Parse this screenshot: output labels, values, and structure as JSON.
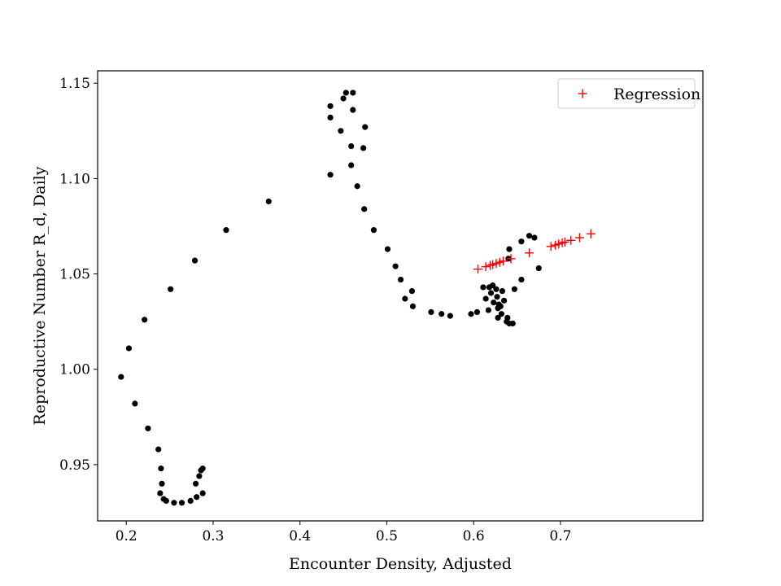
{
  "chart_data": {
    "type": "scatter",
    "title": "",
    "xlabel": "Encounter Density, Adjusted",
    "ylabel": "Reproductive Number R_d, Daily",
    "xlim": [
      0.167,
      0.864
    ],
    "ylim": [
      0.9205,
      1.1565
    ],
    "x_ticks": [
      "0.2",
      "0.3",
      "0.4",
      "0.5",
      "0.6",
      "0.7"
    ],
    "y_ticks": [
      "0.95",
      "1.00",
      "1.05",
      "1.10",
      "1.15"
    ],
    "grid": false,
    "legend_position": "top-right",
    "colors": {
      "observed": "#000000",
      "regression": "#ff0000"
    },
    "series": [
      {
        "marker": "dot",
        "points": [
          [
            0.194,
            0.996
          ],
          [
            0.203,
            1.011
          ],
          [
            0.21,
            0.982
          ],
          [
            0.221,
            1.026
          ],
          [
            0.225,
            0.969
          ],
          [
            0.237,
            0.958
          ],
          [
            0.239,
            0.935
          ],
          [
            0.24,
            0.948
          ],
          [
            0.241,
            0.94
          ],
          [
            0.243,
            0.932
          ],
          [
            0.246,
            0.931
          ],
          [
            0.251,
            1.042
          ],
          [
            0.255,
            0.93
          ],
          [
            0.264,
            0.93
          ],
          [
            0.274,
            0.931
          ],
          [
            0.279,
            1.057
          ],
          [
            0.281,
            0.933
          ],
          [
            0.28,
            0.94
          ],
          [
            0.284,
            0.944
          ],
          [
            0.286,
            0.947
          ],
          [
            0.288,
            0.948
          ],
          [
            0.288,
            0.935
          ],
          [
            0.315,
            1.073
          ],
          [
            0.364,
            1.088
          ],
          [
            0.435,
            1.138
          ],
          [
            0.435,
            1.132
          ],
          [
            0.435,
            1.102
          ],
          [
            0.447,
            1.125
          ],
          [
            0.45,
            1.142
          ],
          [
            0.453,
            1.145
          ],
          [
            0.459,
            1.117
          ],
          [
            0.459,
            1.107
          ],
          [
            0.461,
            1.145
          ],
          [
            0.461,
            1.136
          ],
          [
            0.466,
            1.096
          ],
          [
            0.473,
            1.116
          ],
          [
            0.474,
            1.084
          ],
          [
            0.475,
            1.127
          ],
          [
            0.485,
            1.073
          ],
          [
            0.501,
            1.063
          ],
          [
            0.51,
            1.054
          ],
          [
            0.516,
            1.047
          ],
          [
            0.521,
            1.037
          ],
          [
            0.529,
            1.041
          ],
          [
            0.53,
            1.033
          ],
          [
            0.551,
            1.03
          ],
          [
            0.563,
            1.029
          ],
          [
            0.573,
            1.028
          ],
          [
            0.597,
            1.029
          ],
          [
            0.604,
            1.03
          ],
          [
            0.611,
            1.043
          ],
          [
            0.614,
            1.037
          ],
          [
            0.617,
            1.031
          ],
          [
            0.618,
            1.043
          ],
          [
            0.62,
            1.04
          ],
          [
            0.622,
            1.044
          ],
          [
            0.623,
            1.035
          ],
          [
            0.626,
            1.042
          ],
          [
            0.627,
            1.038
          ],
          [
            0.628,
            1.032
          ],
          [
            0.628,
            1.027
          ],
          [
            0.629,
            1.034
          ],
          [
            0.631,
            1.033
          ],
          [
            0.632,
            1.029
          ],
          [
            0.633,
            1.041
          ],
          [
            0.635,
            1.036
          ],
          [
            0.638,
            1.025
          ],
          [
            0.639,
            1.027
          ],
          [
            0.641,
            1.024
          ],
          [
            0.64,
            1.058
          ],
          [
            0.641,
            1.063
          ],
          [
            0.645,
            1.024
          ],
          [
            0.647,
            1.042
          ],
          [
            0.655,
            1.047
          ],
          [
            0.655,
            1.067
          ],
          [
            0.664,
            1.07
          ],
          [
            0.67,
            1.069
          ],
          [
            0.675,
            1.053
          ]
        ]
      },
      {
        "name": "Regression",
        "marker": "plus",
        "points": [
          [
            0.605,
            1.0525
          ],
          [
            0.614,
            1.0538
          ],
          [
            0.619,
            1.0545
          ],
          [
            0.622,
            1.0549
          ],
          [
            0.626,
            1.0555
          ],
          [
            0.63,
            1.0561
          ],
          [
            0.634,
            1.0567
          ],
          [
            0.643,
            1.058
          ],
          [
            0.664,
            1.061
          ],
          [
            0.689,
            1.0644
          ],
          [
            0.694,
            1.0651
          ],
          [
            0.698,
            1.0657
          ],
          [
            0.702,
            1.0663
          ],
          [
            0.705,
            1.0667
          ],
          [
            0.712,
            1.0676
          ],
          [
            0.722,
            1.069
          ],
          [
            0.735,
            1.071
          ]
        ]
      }
    ]
  }
}
